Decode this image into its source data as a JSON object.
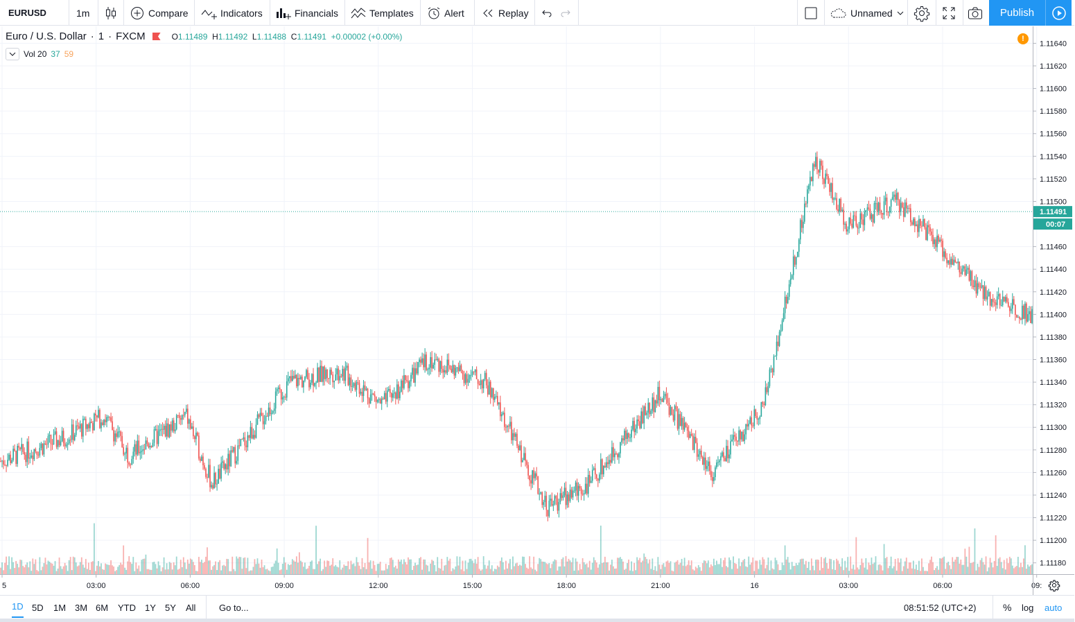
{
  "toolbar": {
    "symbol": "EURUSD",
    "interval": "1m",
    "compare": "Compare",
    "indicators": "Indicators",
    "financials": "Financials",
    "templates": "Templates",
    "alert": "Alert",
    "replay": "Replay",
    "layout_name": "Unnamed",
    "publish": "Publish"
  },
  "legend": {
    "title": "Euro / U.S. Dollar",
    "interval": "1",
    "exchange": "FXCM",
    "o_label": "O",
    "open": "1.11489",
    "h_label": "H",
    "high": "1.11492",
    "l_label": "L",
    "low": "1.11488",
    "c_label": "C",
    "close": "1.11491",
    "change": "+0.00002 (+0.00%)",
    "vol_label": "Vol 20",
    "vol_up": "37",
    "vol_down": "59"
  },
  "colors": {
    "up": "#26a69a",
    "down": "#ef5350",
    "accent": "#2196f3",
    "grid": "#f0f3fa"
  },
  "chart_data": {
    "type": "candlestick",
    "symbol": "EURUSD",
    "price_ticks": [
      "1.11640",
      "1.11620",
      "1.11600",
      "1.11580",
      "1.11560",
      "1.11540",
      "1.11520",
      "1.11500",
      "1.11460",
      "1.11440",
      "1.11420",
      "1.11400",
      "1.11380",
      "1.11360",
      "1.11340",
      "1.11320",
      "1.11300",
      "1.11280",
      "1.11260",
      "1.11240",
      "1.11220",
      "1.11200",
      "1.11180"
    ],
    "time_ticks": [
      "5",
      "03:00",
      "06:00",
      "09:00",
      "12:00",
      "15:00",
      "18:00",
      "21:00",
      "16",
      "03:00",
      "06:00",
      "09:"
    ],
    "ylim": [
      1.1117,
      1.11655
    ],
    "last_price": "1.11491",
    "countdown": "00:07",
    "key_points": [
      {
        "t": 0,
        "p": 1.1127
      },
      {
        "t": 0.06,
        "p": 1.1129
      },
      {
        "t": 0.1,
        "p": 1.1131
      },
      {
        "t": 0.125,
        "p": 1.11275
      },
      {
        "t": 0.18,
        "p": 1.1131
      },
      {
        "t": 0.205,
        "p": 1.1125
      },
      {
        "t": 0.28,
        "p": 1.1134
      },
      {
        "t": 0.33,
        "p": 1.1135
      },
      {
        "t": 0.37,
        "p": 1.1132
      },
      {
        "t": 0.415,
        "p": 1.1136
      },
      {
        "t": 0.47,
        "p": 1.1134
      },
      {
        "t": 0.53,
        "p": 1.1123
      },
      {
        "t": 0.57,
        "p": 1.1125
      },
      {
        "t": 0.64,
        "p": 1.1133
      },
      {
        "t": 0.69,
        "p": 1.1126
      },
      {
        "t": 0.74,
        "p": 1.1132
      },
      {
        "t": 0.79,
        "p": 1.1154
      },
      {
        "t": 0.82,
        "p": 1.1148
      },
      {
        "t": 0.87,
        "p": 1.115
      },
      {
        "t": 0.95,
        "p": 1.1142
      },
      {
        "t": 1.0,
        "p": 1.114
      }
    ]
  },
  "bottom": {
    "ranges": [
      "1D",
      "5D",
      "1M",
      "3M",
      "6M",
      "YTD",
      "1Y",
      "5Y",
      "All"
    ],
    "goto": "Go to...",
    "clock": "08:51:52 (UTC+2)",
    "percent": "%",
    "log": "log",
    "auto": "auto"
  }
}
